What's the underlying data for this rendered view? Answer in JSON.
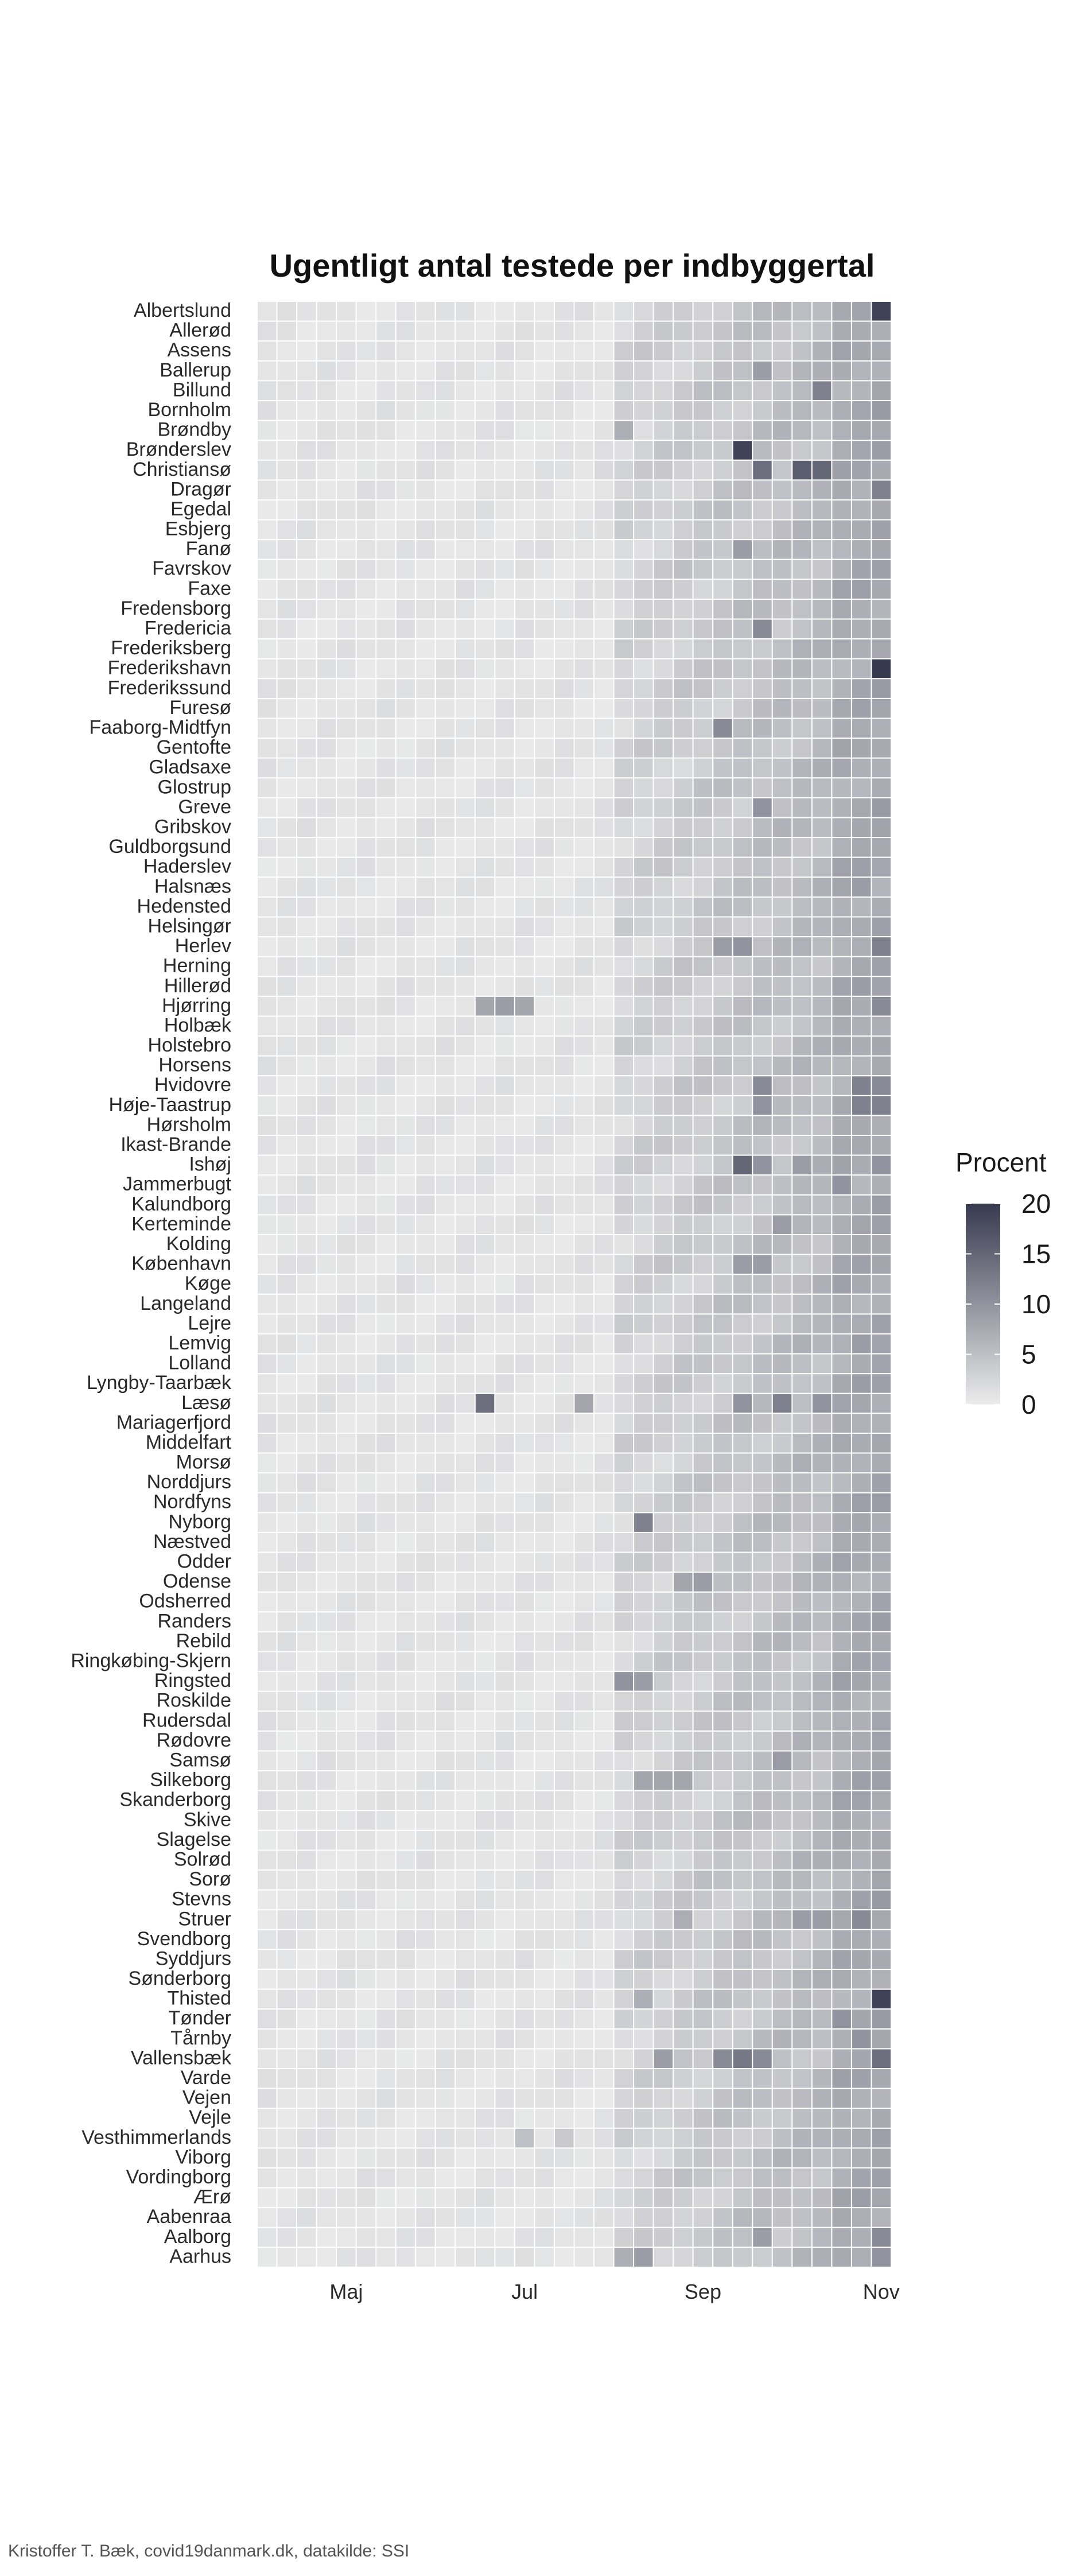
{
  "chart_data": {
    "type": "heatmap",
    "title": "Ugentligt antal testede per indbyggertal",
    "x_tick_labels": [
      "Maj",
      "Jul",
      "Sep",
      "Nov"
    ],
    "x_tick_weeks": [
      4,
      13,
      22,
      31
    ],
    "n_weeks": 32,
    "municipalities": [
      "Albertslund",
      "Allerød",
      "Assens",
      "Ballerup",
      "Billund",
      "Bornholm",
      "Brøndby",
      "Brønderslev",
      "Christiansø",
      "Dragør",
      "Egedal",
      "Esbjerg",
      "Fanø",
      "Favrskov",
      "Faxe",
      "Fredensborg",
      "Fredericia",
      "Frederiksberg",
      "Frederikshavn",
      "Frederikssund",
      "Furesø",
      "Faaborg-Midtfyn",
      "Gentofte",
      "Gladsaxe",
      "Glostrup",
      "Greve",
      "Gribskov",
      "Guldborgsund",
      "Haderslev",
      "Halsnæs",
      "Hedensted",
      "Helsingør",
      "Herlev",
      "Herning",
      "Hillerød",
      "Hjørring",
      "Holbæk",
      "Holstebro",
      "Horsens",
      "Hvidovre",
      "Høje-Taastrup",
      "Hørsholm",
      "Ikast-Brande",
      "Ishøj",
      "Jammerbugt",
      "Kalundborg",
      "Kerteminde",
      "Kolding",
      "København",
      "Køge",
      "Langeland",
      "Lejre",
      "Lemvig",
      "Lolland",
      "Lyngby-Taarbæk",
      "Læsø",
      "Mariagerfjord",
      "Middelfart",
      "Morsø",
      "Norddjurs",
      "Nordfyns",
      "Nyborg",
      "Næstved",
      "Odder",
      "Odense",
      "Odsherred",
      "Randers",
      "Rebild",
      "Ringkøbing-Skjern",
      "Ringsted",
      "Roskilde",
      "Rudersdal",
      "Rødovre",
      "Samsø",
      "Silkeborg",
      "Skanderborg",
      "Skive",
      "Slagelse",
      "Solrød",
      "Sorø",
      "Stevns",
      "Struer",
      "Svendborg",
      "Syddjurs",
      "Sønderborg",
      "Thisted",
      "Tønder",
      "Tårnby",
      "Vallensbæk",
      "Varde",
      "Vejen",
      "Vejle",
      "Vesthimmerlands",
      "Viborg",
      "Vordingborg",
      "Ærø",
      "Aabenraa",
      "Aalborg",
      "Aarhus"
    ],
    "overrides": {
      "Albertslund": [
        [
          31,
          19
        ]
      ],
      "Ballerup": [
        [
          25,
          9
        ]
      ],
      "Billund": [
        [
          28,
          12
        ]
      ],
      "Brøndby": [
        [
          18,
          7
        ]
      ],
      "Brønderslev": [
        [
          24,
          19
        ],
        [
          31,
          9
        ]
      ],
      "Christiansø": [
        [
          25,
          14
        ],
        [
          27,
          16
        ],
        [
          28,
          15
        ],
        [
          17,
          2
        ]
      ],
      "Dragør": [
        [
          31,
          12
        ]
      ],
      "Fanø": [
        [
          24,
          9
        ]
      ],
      "Fredericia": [
        [
          25,
          11
        ]
      ],
      "Frederikshavn": [
        [
          31,
          20
        ]
      ],
      "Faaborg-Midtfyn": [
        [
          23,
          11
        ]
      ],
      "Greve": [
        [
          25,
          10
        ]
      ],
      "Halsnæs": [
        [
          30,
          9
        ]
      ],
      "Herlev": [
        [
          23,
          9
        ],
        [
          24,
          10
        ],
        [
          31,
          12
        ]
      ],
      "Hjørring": [
        [
          11,
          8
        ],
        [
          12,
          9
        ],
        [
          13,
          8
        ],
        [
          31,
          11
        ]
      ],
      "Hvidovre": [
        [
          25,
          11
        ],
        [
          30,
          12
        ],
        [
          31,
          11
        ]
      ],
      "Høje-Taastrup": [
        [
          25,
          10
        ],
        [
          30,
          12
        ],
        [
          31,
          12
        ]
      ],
      "Ishøj": [
        [
          24,
          15
        ],
        [
          25,
          10
        ],
        [
          27,
          9
        ],
        [
          31,
          10
        ]
      ],
      "Jammerbugt": [
        [
          29,
          10
        ]
      ],
      "Kerteminde": [
        [
          26,
          9
        ]
      ],
      "København": [
        [
          24,
          9
        ],
        [
          25,
          9
        ]
      ],
      "Lemvig": [
        [
          30,
          9
        ]
      ],
      "Læsø": [
        [
          11,
          14
        ],
        [
          16,
          8
        ],
        [
          24,
          10
        ],
        [
          26,
          12
        ],
        [
          28,
          10
        ]
      ],
      "Nyborg": [
        [
          19,
          12
        ]
      ],
      "Odense": [
        [
          21,
          8
        ],
        [
          22,
          9
        ]
      ],
      "Ringsted": [
        [
          18,
          10
        ],
        [
          19,
          9
        ]
      ],
      "Samsø": [
        [
          26,
          9
        ]
      ],
      "Silkeborg": [
        [
          19,
          8
        ],
        [
          20,
          8
        ],
        [
          21,
          8
        ]
      ],
      "Struer": [
        [
          27,
          9
        ],
        [
          28,
          9
        ],
        [
          30,
          11
        ],
        [
          21,
          7
        ]
      ],
      "Thisted": [
        [
          31,
          19
        ],
        [
          19,
          7
        ]
      ],
      "Tønder": [
        [
          29,
          10
        ]
      ],
      "Tårnby": [
        [
          30,
          10
        ]
      ],
      "Vallensbæk": [
        [
          20,
          9
        ],
        [
          23,
          11
        ],
        [
          24,
          13
        ],
        [
          25,
          11
        ],
        [
          31,
          14
        ]
      ],
      "Vesthimmerlands": [
        [
          13,
          5
        ],
        [
          15,
          4
        ]
      ],
      "Aalborg": [
        [
          25,
          9
        ],
        [
          31,
          11
        ]
      ],
      "Aarhus": [
        [
          18,
          7
        ],
        [
          19,
          9
        ],
        [
          31,
          10
        ]
      ]
    },
    "value_range": [
      0,
      20
    ],
    "legend": {
      "title": "Procent",
      "ticks": [
        0,
        5,
        10,
        15,
        20
      ],
      "placement": "right",
      "color_low": "#ececec",
      "color_high": "#373a4f"
    },
    "tile_border_color": "#ffffff"
  },
  "caption": "Kristoffer T. Bæk, covid19danmark.dk, datakilde: SSI"
}
